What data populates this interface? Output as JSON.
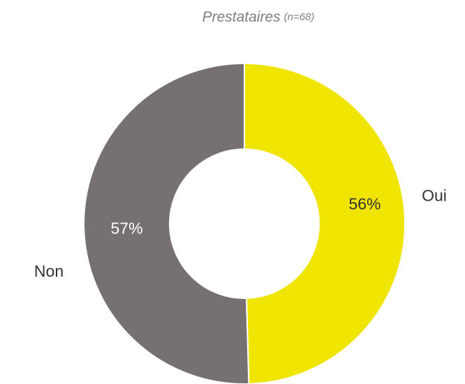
{
  "chart_data": {
    "type": "donut",
    "title": "Prestataires",
    "subtitle": "(n=68)",
    "categories": [
      "Oui",
      "Non"
    ],
    "values": [
      56,
      57
    ],
    "value_labels": [
      "56%",
      "57%"
    ],
    "colors": [
      "#f0e500",
      "#767170"
    ]
  }
}
